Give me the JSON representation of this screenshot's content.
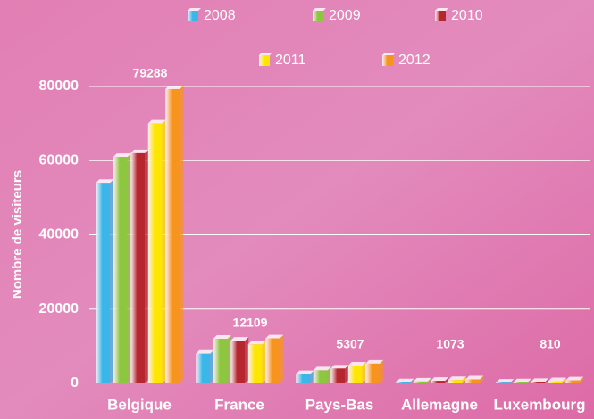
{
  "chart_data": {
    "type": "bar",
    "y_label": "Nombre de visiteurs",
    "categories": [
      "Belgique",
      "France",
      "Pays-Bas",
      "Allemagne",
      "Luxembourg"
    ],
    "series": [
      {
        "name": "2008",
        "color": "#3ab7e8",
        "values": [
          54000,
          8000,
          2500,
          300,
          200
        ]
      },
      {
        "name": "2009",
        "color": "#8dc63f",
        "values": [
          61000,
          12000,
          3500,
          500,
          300
        ]
      },
      {
        "name": "2010",
        "color": "#b5262e",
        "values": [
          62000,
          11500,
          4000,
          700,
          400
        ]
      },
      {
        "name": "2011",
        "color": "#ffe600",
        "values": [
          70000,
          10500,
          4800,
          900,
          600
        ]
      },
      {
        "name": "2012",
        "color": "#f7941d",
        "values": [
          79288,
          12109,
          5307,
          1073,
          810
        ]
      }
    ],
    "data_labels_series": 4,
    "ylim": [
      0,
      80000
    ],
    "yticks": [
      0,
      20000,
      40000,
      60000,
      80000
    ],
    "grid": true
  }
}
